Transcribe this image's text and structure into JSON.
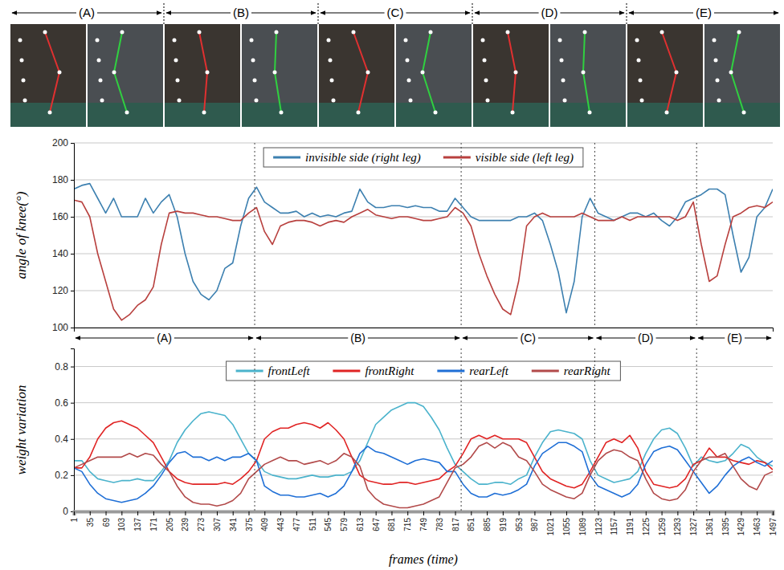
{
  "photo_strip": {
    "labels": [
      "(A)",
      "(B)",
      "(C)",
      "(D)",
      "(E)"
    ]
  },
  "chart_data": [
    {
      "type": "line",
      "ylabel": "angle of knee(°)",
      "xlim": [
        1,
        1497
      ],
      "ylim": [
        100,
        200
      ],
      "yticks": [
        100,
        120,
        140,
        160,
        180,
        200
      ],
      "grid": true,
      "legend": "top",
      "tick_labels": "y",
      "x": [
        1,
        18,
        35,
        52,
        69,
        86,
        103,
        120,
        137,
        154,
        171,
        188,
        205,
        222,
        239,
        256,
        273,
        290,
        307,
        324,
        341,
        358,
        375,
        392,
        409,
        426,
        443,
        460,
        477,
        494,
        511,
        528,
        545,
        562,
        579,
        596,
        613,
        630,
        647,
        664,
        681,
        698,
        715,
        732,
        749,
        766,
        783,
        800,
        817,
        834,
        851,
        868,
        885,
        902,
        919,
        936,
        953,
        970,
        987,
        1004,
        1021,
        1038,
        1055,
        1072,
        1089,
        1106,
        1123,
        1140,
        1157,
        1174,
        1191,
        1208,
        1225,
        1242,
        1259,
        1276,
        1293,
        1310,
        1327,
        1344,
        1361,
        1378,
        1395,
        1412,
        1429,
        1446,
        1463,
        1480,
        1497
      ],
      "series": [
        {
          "name": "invisible side (right leg)",
          "color": "#3d80b0",
          "values": [
            175,
            177,
            178,
            170,
            162,
            170,
            160,
            160,
            160,
            170,
            162,
            168,
            172,
            160,
            140,
            125,
            118,
            115,
            120,
            132,
            135,
            155,
            170,
            176,
            168,
            165,
            162,
            162,
            163,
            160,
            162,
            160,
            161,
            160,
            162,
            163,
            175,
            168,
            165,
            165,
            166,
            166,
            165,
            166,
            165,
            165,
            163,
            163,
            170,
            165,
            160,
            158,
            158,
            158,
            158,
            158,
            160,
            160,
            162,
            158,
            145,
            130,
            108,
            125,
            160,
            170,
            162,
            160,
            158,
            160,
            162,
            162,
            160,
            162,
            158,
            155,
            160,
            168,
            170,
            172,
            175,
            175,
            172,
            150,
            130,
            138,
            160,
            165,
            175
          ]
        },
        {
          "name": "visible side (left leg)",
          "color": "#b8403e",
          "values": [
            169,
            168,
            160,
            140,
            125,
            110,
            104,
            107,
            112,
            115,
            122,
            145,
            162,
            163,
            162,
            162,
            161,
            160,
            160,
            159,
            158,
            158,
            162,
            165,
            152,
            145,
            155,
            157,
            158,
            158,
            157,
            155,
            157,
            158,
            157,
            160,
            162,
            164,
            161,
            160,
            159,
            160,
            160,
            159,
            158,
            158,
            159,
            160,
            165,
            162,
            155,
            140,
            128,
            118,
            110,
            107,
            125,
            155,
            160,
            162,
            160,
            160,
            160,
            160,
            162,
            160,
            158,
            158,
            158,
            160,
            158,
            160,
            160,
            160,
            160,
            160,
            158,
            160,
            168,
            145,
            125,
            128,
            145,
            160,
            162,
            165,
            166,
            165,
            168
          ]
        }
      ]
    },
    {
      "type": "line",
      "ylabel": "weight variation",
      "xlabel": "frames (time)",
      "xlim": [
        1,
        1497
      ],
      "ylim": [
        0,
        0.9
      ],
      "xticks": [
        1,
        35,
        69,
        103,
        137,
        171,
        205,
        239,
        273,
        307,
        341,
        375,
        409,
        443,
        477,
        511,
        545,
        579,
        613,
        647,
        681,
        715,
        749,
        783,
        817,
        851,
        885,
        919,
        953,
        987,
        1021,
        1055,
        1089,
        1123,
        1157,
        1191,
        1225,
        1259,
        1293,
        1327,
        1361,
        1395,
        1429,
        1463,
        1497
      ],
      "yticks": [
        0,
        0.2,
        0.4,
        0.6,
        0.8
      ],
      "grid": true,
      "legend": "top",
      "tick_labels": true,
      "phases": [
        {
          "label": "(A)",
          "start": 1,
          "end": 388
        },
        {
          "label": "(B)",
          "start": 388,
          "end": 830
        },
        {
          "label": "(C)",
          "start": 830,
          "end": 1116
        },
        {
          "label": "(D)",
          "start": 1116,
          "end": 1334
        },
        {
          "label": "(E)",
          "start": 1334,
          "end": 1497
        }
      ],
      "x": [
        1,
        18,
        35,
        52,
        69,
        86,
        103,
        120,
        137,
        154,
        171,
        188,
        205,
        222,
        239,
        256,
        273,
        290,
        307,
        324,
        341,
        358,
        375,
        392,
        409,
        426,
        443,
        460,
        477,
        494,
        511,
        528,
        545,
        562,
        579,
        596,
        613,
        630,
        647,
        664,
        681,
        698,
        715,
        732,
        749,
        766,
        783,
        800,
        817,
        834,
        851,
        868,
        885,
        902,
        919,
        936,
        953,
        970,
        987,
        1004,
        1021,
        1038,
        1055,
        1072,
        1089,
        1106,
        1123,
        1140,
        1157,
        1174,
        1191,
        1208,
        1225,
        1242,
        1259,
        1276,
        1293,
        1310,
        1327,
        1344,
        1361,
        1378,
        1395,
        1412,
        1429,
        1446,
        1463,
        1480,
        1497
      ],
      "series": [
        {
          "name": "frontLeft",
          "color": "#4bb3cc",
          "values": [
            0.28,
            0.28,
            0.22,
            0.18,
            0.17,
            0.16,
            0.17,
            0.17,
            0.18,
            0.17,
            0.17,
            0.22,
            0.28,
            0.38,
            0.45,
            0.5,
            0.54,
            0.55,
            0.54,
            0.53,
            0.48,
            0.4,
            0.32,
            0.28,
            0.22,
            0.2,
            0.19,
            0.18,
            0.18,
            0.19,
            0.2,
            0.19,
            0.19,
            0.2,
            0.2,
            0.22,
            0.28,
            0.38,
            0.48,
            0.52,
            0.56,
            0.58,
            0.6,
            0.6,
            0.58,
            0.52,
            0.45,
            0.35,
            0.26,
            0.22,
            0.18,
            0.15,
            0.15,
            0.16,
            0.16,
            0.15,
            0.18,
            0.2,
            0.3,
            0.38,
            0.44,
            0.45,
            0.44,
            0.43,
            0.4,
            0.28,
            0.2,
            0.18,
            0.16,
            0.17,
            0.18,
            0.22,
            0.32,
            0.4,
            0.45,
            0.46,
            0.43,
            0.35,
            0.25,
            0.3,
            0.28,
            0.27,
            0.28,
            0.32,
            0.37,
            0.35,
            0.3,
            0.27,
            0.25
          ]
        },
        {
          "name": "frontRight",
          "color": "#e02424",
          "values": [
            0.24,
            0.24,
            0.3,
            0.4,
            0.46,
            0.49,
            0.5,
            0.48,
            0.46,
            0.42,
            0.38,
            0.3,
            0.22,
            0.18,
            0.16,
            0.15,
            0.15,
            0.15,
            0.15,
            0.16,
            0.15,
            0.18,
            0.22,
            0.28,
            0.4,
            0.44,
            0.46,
            0.46,
            0.48,
            0.49,
            0.48,
            0.46,
            0.49,
            0.45,
            0.4,
            0.3,
            0.2,
            0.17,
            0.16,
            0.15,
            0.15,
            0.16,
            0.16,
            0.15,
            0.16,
            0.17,
            0.18,
            0.22,
            0.25,
            0.32,
            0.4,
            0.42,
            0.4,
            0.42,
            0.4,
            0.4,
            0.4,
            0.38,
            0.3,
            0.22,
            0.18,
            0.16,
            0.14,
            0.13,
            0.15,
            0.22,
            0.3,
            0.38,
            0.4,
            0.38,
            0.42,
            0.35,
            0.22,
            0.15,
            0.14,
            0.13,
            0.14,
            0.18,
            0.26,
            0.28,
            0.35,
            0.3,
            0.3,
            0.28,
            0.27,
            0.26,
            0.28,
            0.27,
            0.23
          ]
        },
        {
          "name": "rearLeft",
          "color": "#1f6fd6",
          "values": [
            0.24,
            0.22,
            0.15,
            0.1,
            0.07,
            0.06,
            0.05,
            0.06,
            0.07,
            0.1,
            0.14,
            0.2,
            0.27,
            0.32,
            0.33,
            0.3,
            0.3,
            0.28,
            0.3,
            0.28,
            0.3,
            0.3,
            0.32,
            0.28,
            0.14,
            0.11,
            0.09,
            0.09,
            0.08,
            0.08,
            0.09,
            0.1,
            0.08,
            0.1,
            0.14,
            0.22,
            0.32,
            0.36,
            0.33,
            0.32,
            0.3,
            0.28,
            0.26,
            0.28,
            0.29,
            0.28,
            0.27,
            0.22,
            0.22,
            0.15,
            0.1,
            0.08,
            0.08,
            0.1,
            0.09,
            0.1,
            0.12,
            0.15,
            0.25,
            0.32,
            0.35,
            0.38,
            0.38,
            0.36,
            0.33,
            0.2,
            0.14,
            0.12,
            0.1,
            0.08,
            0.1,
            0.15,
            0.26,
            0.33,
            0.35,
            0.36,
            0.34,
            0.28,
            0.22,
            0.16,
            0.1,
            0.14,
            0.2,
            0.25,
            0.28,
            0.3,
            0.27,
            0.25,
            0.28
          ]
        },
        {
          "name": "rearRight",
          "color": "#b24a4a",
          "values": [
            0.24,
            0.26,
            0.28,
            0.3,
            0.3,
            0.3,
            0.3,
            0.32,
            0.3,
            0.32,
            0.31,
            0.26,
            0.22,
            0.14,
            0.08,
            0.05,
            0.04,
            0.04,
            0.03,
            0.04,
            0.06,
            0.1,
            0.18,
            0.22,
            0.26,
            0.28,
            0.3,
            0.28,
            0.28,
            0.26,
            0.27,
            0.28,
            0.26,
            0.28,
            0.32,
            0.3,
            0.25,
            0.12,
            0.07,
            0.04,
            0.03,
            0.02,
            0.02,
            0.03,
            0.04,
            0.06,
            0.08,
            0.16,
            0.24,
            0.26,
            0.3,
            0.36,
            0.38,
            0.35,
            0.38,
            0.36,
            0.3,
            0.28,
            0.22,
            0.15,
            0.12,
            0.1,
            0.08,
            0.07,
            0.1,
            0.2,
            0.28,
            0.32,
            0.34,
            0.33,
            0.3,
            0.28,
            0.18,
            0.1,
            0.07,
            0.06,
            0.07,
            0.12,
            0.22,
            0.28,
            0.3,
            0.3,
            0.32,
            0.25,
            0.18,
            0.14,
            0.12,
            0.2,
            0.22
          ]
        }
      ]
    }
  ]
}
